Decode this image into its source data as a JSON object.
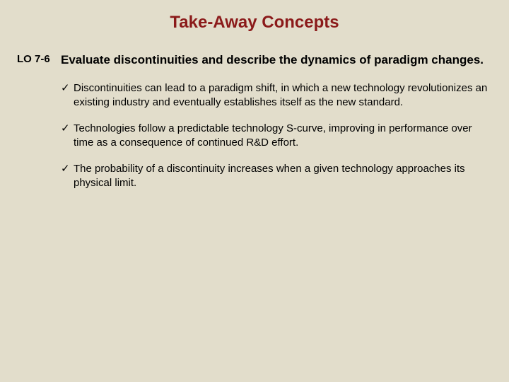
{
  "colors": {
    "background": "#e2ddcb",
    "title": "#8b1a1a",
    "text": "#000000"
  },
  "typography": {
    "title_fontsize": 24,
    "objective_fontsize": 17,
    "body_fontsize": 15,
    "lo_fontsize": 15
  },
  "title": "Take-Away Concepts",
  "lo_label": "LO 7-6",
  "objective": "Evaluate discontinuities and describe the dynamics of paradigm changes.",
  "bullet_marker": "✓",
  "bullets": [
    "Discontinuities can lead to a paradigm shift, in which a new technology revolutionizes an existing industry and eventually establishes itself as the new standard.",
    "Technologies follow a predictable technology S-curve, improving in performance over time as a consequence of continued R&D effort.",
    "The probability of a discontinuity increases when a given technology approaches its physical limit."
  ]
}
